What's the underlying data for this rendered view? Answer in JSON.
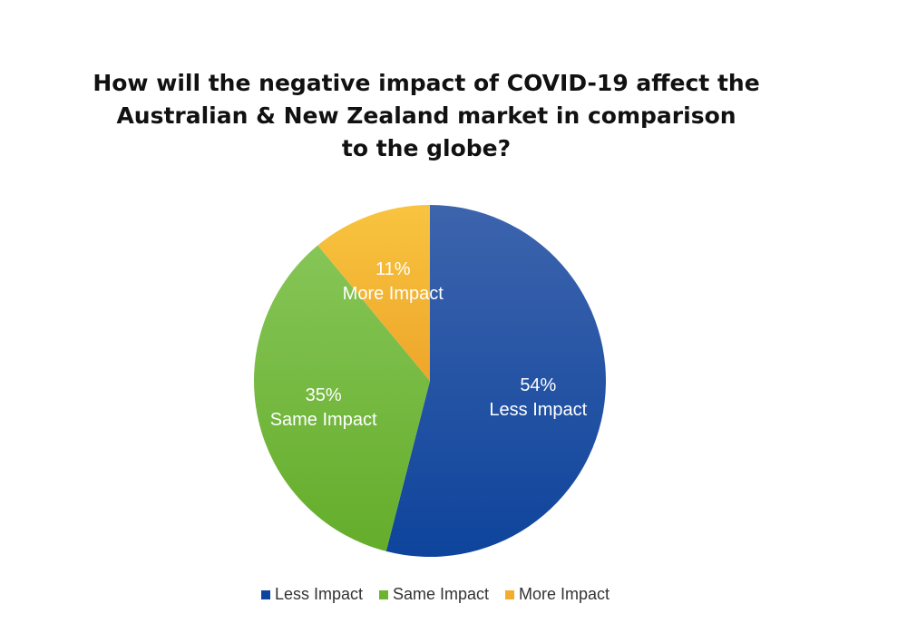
{
  "chart_data": {
    "type": "pie",
    "title_lines": [
      "How will the negative impact of COVID-19 affect the",
      "Australian & New Zealand market in comparison",
      "to the globe?"
    ],
    "slices": [
      {
        "name": "Less Impact",
        "value": 54,
        "percent_label": "54%",
        "label": "Less Impact",
        "color": "#0e449c"
      },
      {
        "name": "Same Impact",
        "value": 35,
        "percent_label": "35%",
        "label": "Same Impact",
        "color": "#6cb42f"
      },
      {
        "name": "More Impact",
        "value": 11,
        "percent_label": "11%",
        "label": "More Impact",
        "color": "#f2ad2c"
      }
    ],
    "start_angle": "12 o'clock",
    "direction": "clockwise",
    "legend": {
      "position": "bottom",
      "items": [
        "Less Impact",
        "Same Impact",
        "More Impact"
      ]
    }
  }
}
